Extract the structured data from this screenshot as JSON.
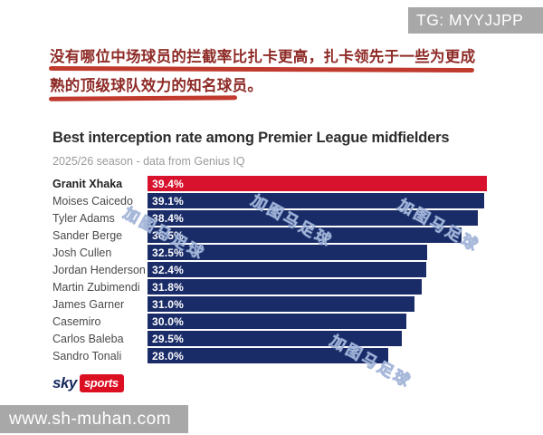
{
  "overlay": {
    "top_badge": "TG: MYYJJPP",
    "bottom_badge": "www.sh-muhan.com",
    "diagonal_watermark": "加图马足球",
    "annotation_line1": "没有哪位中场球员的拦截率比扎卡更高，扎卡领先于一些为更成",
    "annotation_line2": "熟的顶级球队效力的知名球员。"
  },
  "chart_data": {
    "type": "bar",
    "orientation": "horizontal",
    "title": "Best interception rate among Premier League midfielders",
    "subtitle": "2025/26 season - data from Genius IQ",
    "categories": [
      "Granit Xhaka",
      "Moises Caicedo",
      "Tyler Adams",
      "Sander Berge",
      "Josh Cullen",
      "Jordan Henderson",
      "Martin Zubimendi",
      "James Garner",
      "Casemiro",
      "Carlos Baleba",
      "Sandro Tonali"
    ],
    "values": [
      39.4,
      39.1,
      38.4,
      36.5,
      32.5,
      32.4,
      31.8,
      31.0,
      30.0,
      29.5,
      28.0
    ],
    "value_labels": [
      "39.4%",
      "39.1%",
      "38.4%",
      "36.5%",
      "32.5%",
      "32.4%",
      "31.8%",
      "31.0%",
      "30.0%",
      "29.5%",
      "28.0%"
    ],
    "xlim": [
      0,
      39.4
    ],
    "grid": false,
    "legend": false,
    "highlight_index": 0,
    "highlight_color": "#d8122d",
    "bar_color": "#1a2c68"
  },
  "branding": {
    "sky": "sky",
    "sports": "sports"
  }
}
